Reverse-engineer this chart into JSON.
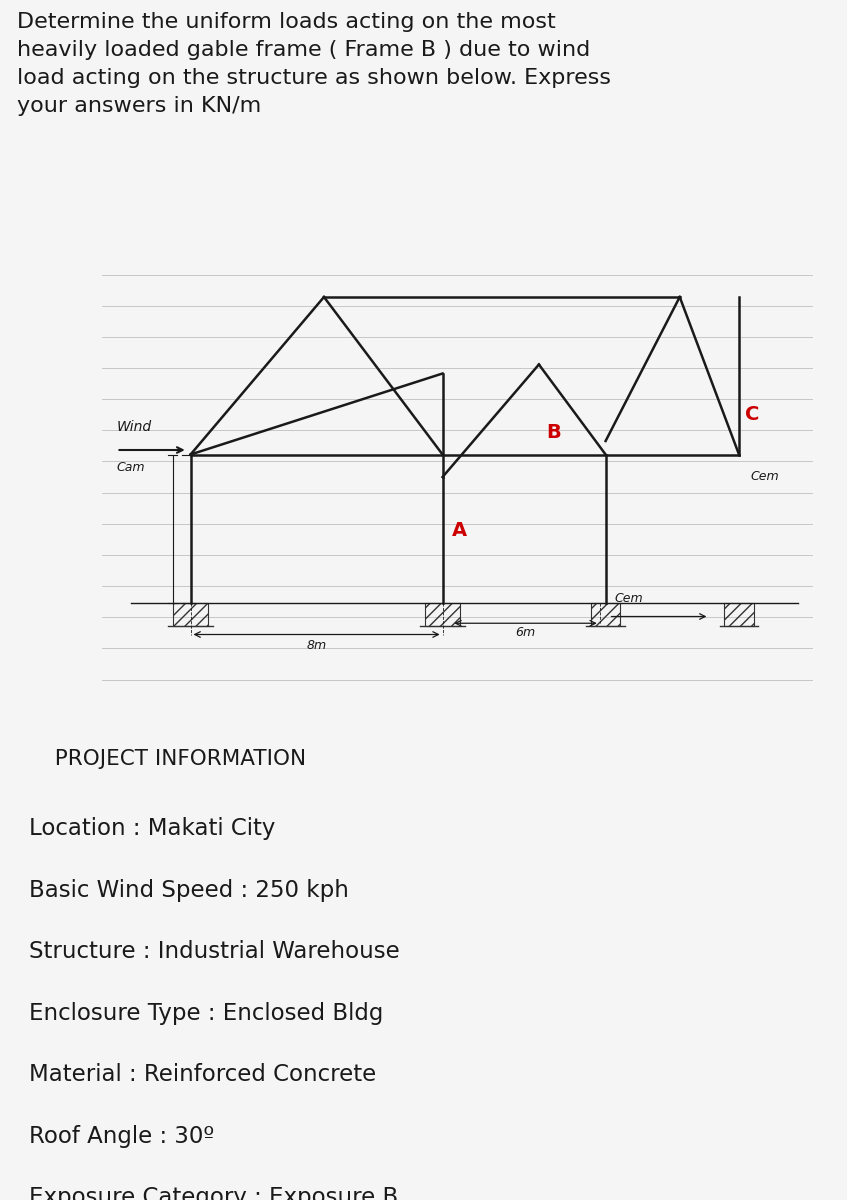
{
  "title_text": "Determine the uniform loads acting on the most\nheavily loaded gable frame ( Frame B ) due to wind\nload acting on the structure as shown below. Express\nyour answers in KN/m",
  "title_fontsize": 16.0,
  "bg_color": "#f5f5f5",
  "project_info_title": "  PROJECT INFORMATION",
  "project_info": [
    "Location : Makati City",
    "Basic Wind Speed : 250 kph",
    "Structure : Industrial Warehouse",
    "Enclosure Type : Enclosed Bldg",
    "Material : Reinforced Concrete",
    "Roof Angle : 30º",
    "Exposure Category : Exposure B"
  ],
  "info_fontsize": 16.5,
  "info_title_fontsize": 15.5,
  "line_color": "#1a1a1a",
  "label_color_red": "#cc0000",
  "label_color_black": "#1a1a1a",
  "wind_label": "Wind",
  "cam_label": "Cam",
  "cem_label": "Cem",
  "label_A": "A",
  "label_B": "B",
  "label_C": "C",
  "dim_8m": "8m",
  "dim_6m": "6m"
}
